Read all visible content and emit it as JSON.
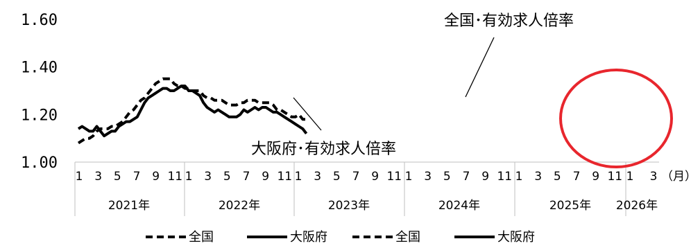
{
  "chart_data": {
    "type": "line",
    "y_ticks": [
      "1.00",
      "1.20",
      "1.40",
      "1.60"
    ],
    "ylim": [
      1.0,
      1.6
    ],
    "month_ticks": [
      "1",
      "3",
      "5",
      "7",
      "9",
      "11",
      "1",
      "3",
      "5",
      "7",
      "9",
      "11",
      "1",
      "3",
      "5",
      "7",
      "9",
      "11",
      "1",
      "3",
      "5",
      "7",
      "9",
      "11",
      "1",
      "3",
      "5",
      "7",
      "9",
      "11",
      "1",
      "3"
    ],
    "year_labels": [
      "2021年",
      "2022年",
      "2023年",
      "2024年",
      "2025年",
      "2026年"
    ],
    "unit_label": "（月）",
    "annotations": {
      "national": "全国･有効求人倍率",
      "osaka": "大阪府･有効求人倍率"
    },
    "series": [
      {
        "name": "全国",
        "style": "dashed",
        "values": [
          1.08,
          1.09,
          1.1,
          1.1,
          1.11,
          1.13,
          1.14,
          1.14,
          1.14,
          1.15,
          1.15,
          1.16,
          1.17,
          1.19,
          1.21,
          1.22,
          1.24,
          1.26,
          1.27,
          1.29,
          1.31,
          1.33,
          1.34,
          1.35,
          1.35,
          1.35,
          1.33,
          1.32,
          1.32,
          1.31,
          1.31,
          1.3,
          1.3,
          1.3,
          1.28,
          1.27,
          1.27,
          1.26,
          1.26,
          1.26,
          1.25,
          1.24,
          1.24,
          1.24,
          1.25,
          1.25,
          1.26,
          1.26,
          1.26,
          1.25,
          1.25,
          1.25,
          1.25,
          1.24,
          1.22,
          1.22,
          1.21,
          1.2,
          1.19,
          1.19,
          1.2,
          1.18,
          1.18
        ]
      },
      {
        "name": "大阪府",
        "style": "solid",
        "values": [
          1.14,
          1.15,
          1.14,
          1.13,
          1.13,
          1.15,
          1.13,
          1.11,
          1.12,
          1.13,
          1.13,
          1.15,
          1.16,
          1.17,
          1.17,
          1.18,
          1.19,
          1.22,
          1.25,
          1.27,
          1.28,
          1.29,
          1.3,
          1.31,
          1.31,
          1.3,
          1.3,
          1.31,
          1.32,
          1.32,
          1.3,
          1.3,
          1.29,
          1.28,
          1.25,
          1.23,
          1.22,
          1.21,
          1.22,
          1.21,
          1.2,
          1.19,
          1.19,
          1.19,
          1.2,
          1.22,
          1.21,
          1.22,
          1.23,
          1.22,
          1.23,
          1.23,
          1.22,
          1.21,
          1.21,
          1.2,
          1.19,
          1.18,
          1.17,
          1.16,
          1.15,
          1.14,
          1.12
        ]
      }
    ],
    "legend": [
      "全国",
      "大阪府",
      "全国",
      "大阪府"
    ],
    "highlight_color": "#e8262d"
  }
}
